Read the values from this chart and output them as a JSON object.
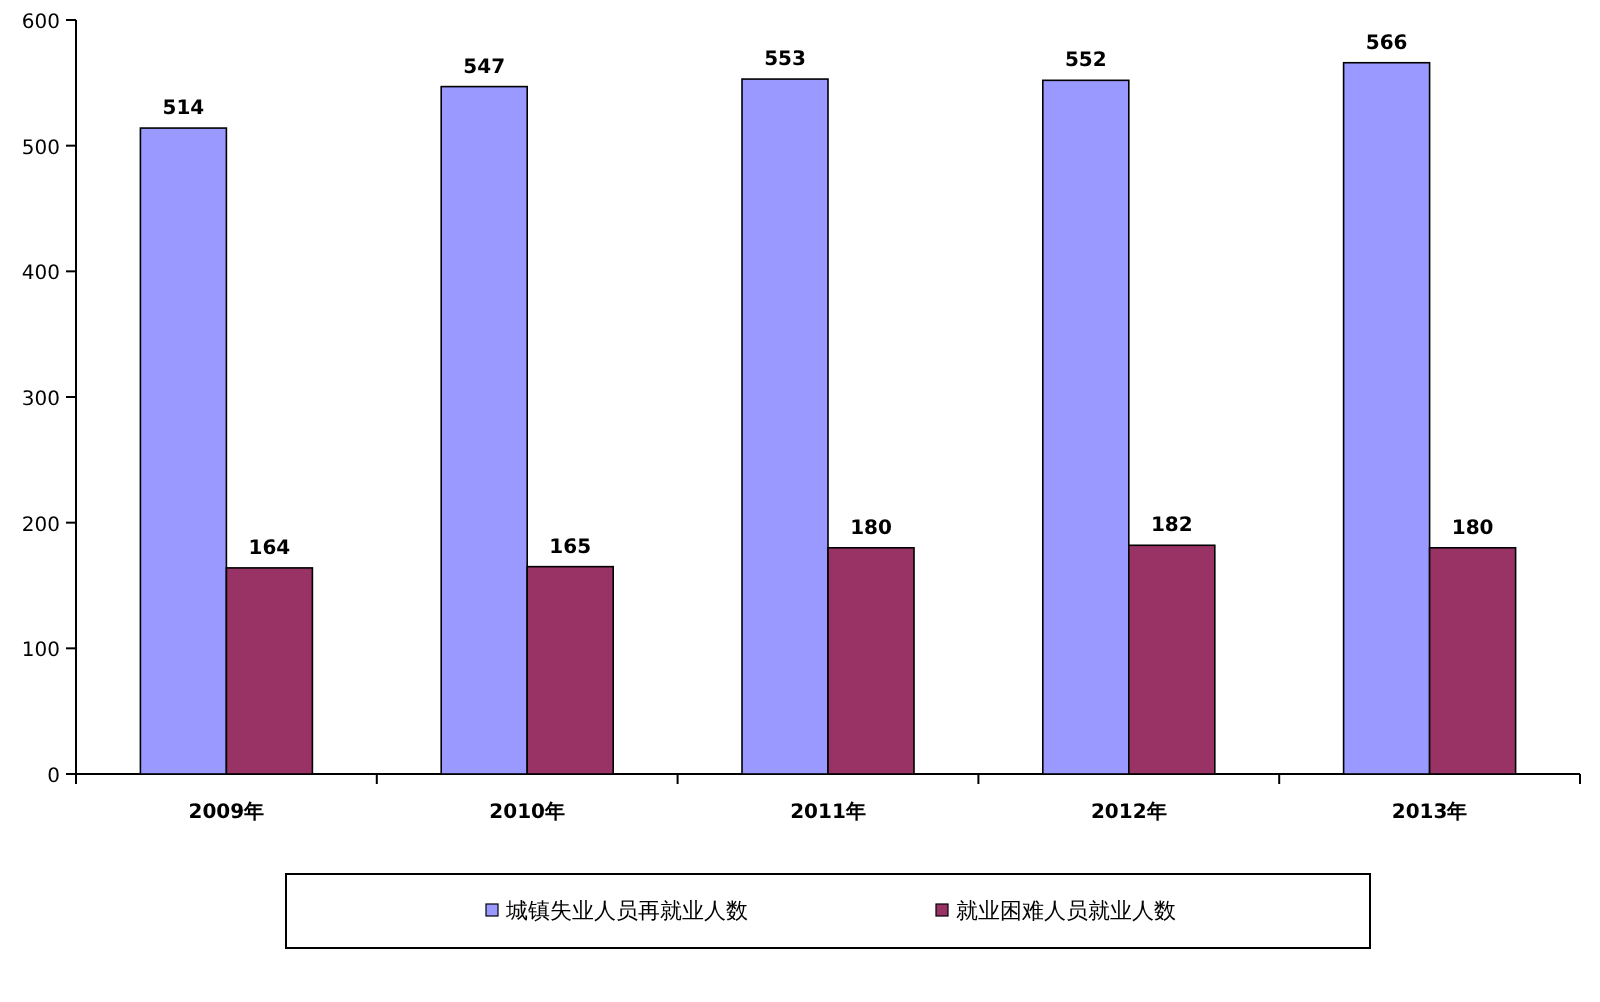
{
  "chart_data": {
    "type": "bar",
    "categories": [
      "2009年",
      "2010年",
      "2011年",
      "2012年",
      "2013年"
    ],
    "series": [
      {
        "name": "城镇失业人员再就业人数",
        "color": "#9999ff",
        "values": [
          514,
          547,
          553,
          552,
          566
        ]
      },
      {
        "name": "就业困难人员就业人数",
        "color": "#993366",
        "values": [
          164,
          165,
          180,
          182,
          180
        ]
      }
    ],
    "ylim": [
      0,
      600
    ],
    "yticks": [
      0,
      100,
      200,
      300,
      400,
      500,
      600
    ],
    "data_labels": true,
    "legend": "bottom",
    "grid": false
  }
}
